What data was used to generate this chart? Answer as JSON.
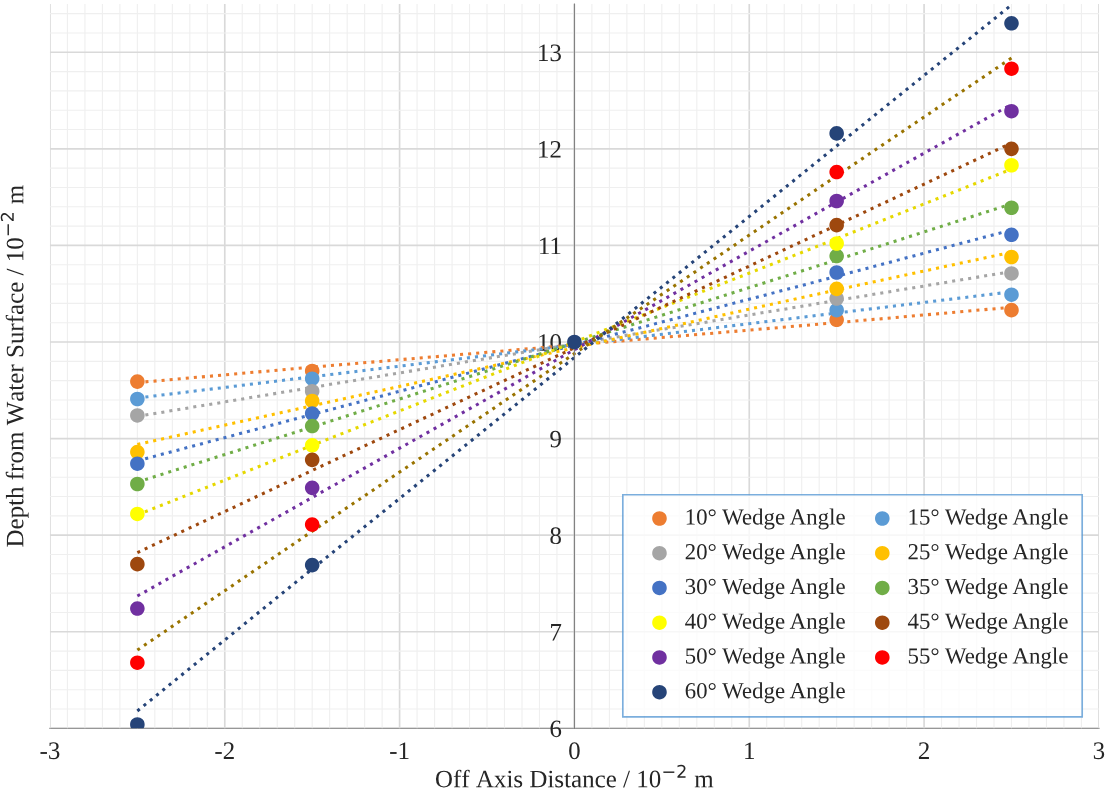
{
  "chart_data": {
    "type": "scatter",
    "xlabel": "Off Axis Distance / 10$^{−2}$ m",
    "ylabel": "Depth from Water Surface / 10$^{−2}$ m",
    "x": [
      -2.5,
      -1.5,
      0,
      1.5,
      2.5
    ],
    "xlim": [
      -3,
      3
    ],
    "xticks": [
      -3,
      -2,
      -1,
      0,
      1,
      2,
      3
    ],
    "ylim": [
      6,
      13.5
    ],
    "yticks": [
      6,
      7,
      8,
      9,
      10,
      11,
      12,
      13
    ],
    "grid": true,
    "legend": "bottom right",
    "marker": "circle",
    "series": [
      {
        "name": "10° Wedge Angle",
        "color": "#ed7d31",
        "values": [
          9.59,
          9.7,
          null,
          10.23,
          10.33
        ]
      },
      {
        "name": "15° Wedge Angle",
        "color": "#5b9bd5",
        "values": [
          9.41,
          9.62,
          null,
          10.33,
          10.49
        ]
      },
      {
        "name": "20° Wedge Angle",
        "color": "#a5a5a5",
        "values": [
          9.24,
          9.49,
          null,
          10.45,
          10.71
        ]
      },
      {
        "name": "25° Wedge Angle",
        "color": "#ffc000",
        "values": [
          8.86,
          9.39,
          null,
          10.55,
          10.88
        ]
      },
      {
        "name": "30° Wedge Angle",
        "color": "#4472c4",
        "values": [
          8.74,
          9.26,
          null,
          10.72,
          11.11
        ]
      },
      {
        "name": "35° Wedge Angle",
        "color": "#70ad47",
        "values": [
          8.53,
          9.13,
          null,
          10.89,
          11.39
        ]
      },
      {
        "name": "40° Wedge Angle",
        "color": "#ffff00",
        "values": [
          8.22,
          8.93,
          null,
          11.02,
          11.83
        ]
      },
      {
        "name": "45° Wedge Angle",
        "color": "#9e480e",
        "values": [
          7.7,
          8.78,
          null,
          11.21,
          12.0
        ]
      },
      {
        "name": "50° Wedge Angle",
        "color": "#7030a0",
        "values": [
          7.24,
          8.49,
          null,
          11.46,
          12.39
        ]
      },
      {
        "name": "55° Wedge Angle",
        "color": "#ff0000",
        "values": [
          6.68,
          8.11,
          null,
          11.76,
          12.83
        ]
      },
      {
        "name": "60° Wedge Angle",
        "color": "#264478",
        "values": [
          6.04,
          7.69,
          10,
          12.16,
          13.3
        ]
      },
      {
        "type": "line",
        "line_style": "dotted",
        "marker": "none",
        "color": "#ed7d31",
        "values": [
          9.58,
          9.74,
          9.97,
          10.2,
          10.36
        ]
      },
      {
        "type": "line",
        "line_style": "dotted",
        "marker": "none",
        "color": "#5b9bd5",
        "values": [
          9.42,
          9.64,
          9.97,
          10.3,
          10.52
        ]
      },
      {
        "type": "line",
        "line_style": "dotted",
        "marker": "none",
        "color": "#a5a5a5",
        "values": [
          9.23,
          9.53,
          9.98,
          10.43,
          10.73
        ]
      },
      {
        "type": "line",
        "line_style": "dotted",
        "marker": "none",
        "color": "#ffc000",
        "values": [
          8.94,
          9.34,
          9.94,
          10.54,
          10.93
        ]
      },
      {
        "type": "line",
        "line_style": "dotted",
        "marker": "none",
        "color": "#4472c4",
        "values": [
          8.77,
          9.25,
          9.97,
          10.68,
          11.16
        ]
      },
      {
        "type": "line",
        "line_style": "dotted",
        "marker": "none",
        "color": "#70ad47",
        "values": [
          8.55,
          9.12,
          9.99,
          10.85,
          11.43
        ]
      },
      {
        "type": "line",
        "line_style": "dotted",
        "marker": "none",
        "color": "#e6d800",
        "values": [
          8.21,
          8.93,
          10.0,
          11.07,
          11.79
        ]
      },
      {
        "type": "line",
        "line_style": "dotted",
        "marker": "none",
        "color": "#9e480e",
        "values": [
          7.82,
          8.67,
          9.94,
          11.21,
          12.06
        ]
      },
      {
        "type": "line",
        "line_style": "dotted",
        "marker": "none",
        "color": "#7030a0",
        "values": [
          7.37,
          8.39,
          9.92,
          11.45,
          12.46
        ]
      },
      {
        "type": "line",
        "line_style": "dotted",
        "marker": "none",
        "color": "#997300",
        "values": [
          6.81,
          8.04,
          9.88,
          11.72,
          12.94
        ]
      },
      {
        "type": "line",
        "line_style": "dotted",
        "marker": "none",
        "color": "#264478",
        "values": [
          6.18,
          7.65,
          9.84,
          12.03,
          13.49
        ]
      }
    ]
  }
}
